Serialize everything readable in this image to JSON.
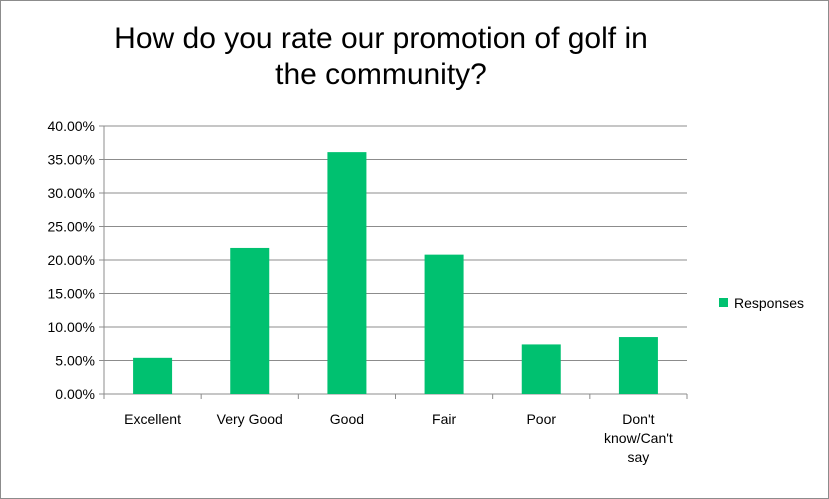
{
  "chart_data": {
    "type": "bar",
    "title": "How do you rate our promotion of golf in the community?",
    "categories": [
      "Excellent",
      "Very Good",
      "Good",
      "Fair",
      "Poor",
      "Don't know/Can't say"
    ],
    "category_lines": [
      [
        "Excellent"
      ],
      [
        "Very Good"
      ],
      [
        "Good"
      ],
      [
        "Fair"
      ],
      [
        "Poor"
      ],
      [
        "Don't",
        "know/Can't",
        "say"
      ]
    ],
    "series": [
      {
        "name": "Responses",
        "values": [
          0.054,
          0.218,
          0.361,
          0.208,
          0.074,
          0.085
        ],
        "color": "#00c170"
      }
    ],
    "y_ticks": [
      "0.00%",
      "5.00%",
      "10.00%",
      "15.00%",
      "20.00%",
      "25.00%",
      "30.00%",
      "35.00%",
      "40.00%"
    ],
    "ylim": [
      0,
      0.4
    ],
    "y_format": "percent",
    "grid": true,
    "legend_position": "right",
    "xlabel": "",
    "ylabel": ""
  }
}
